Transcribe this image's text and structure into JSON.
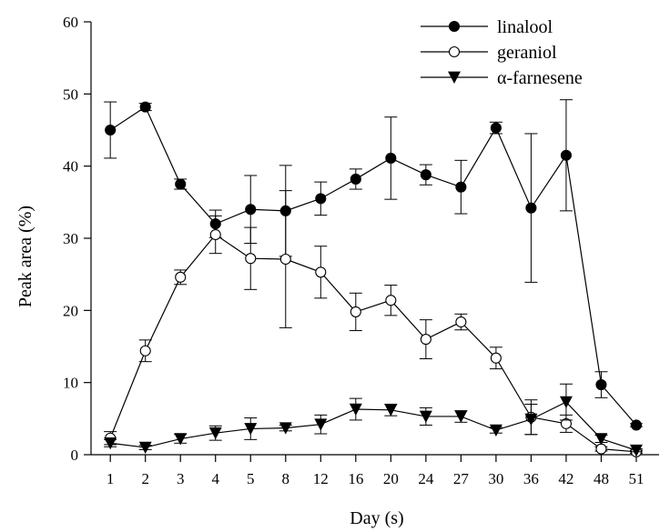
{
  "chart_data": {
    "type": "line",
    "title": "",
    "xlabel": "Day (s)",
    "ylabel": "Peak area (%)",
    "categories": [
      "1",
      "2",
      "3",
      "4",
      "5",
      "8",
      "12",
      "16",
      "20",
      "24",
      "27",
      "30",
      "36",
      "42",
      "48",
      "51"
    ],
    "ylim": [
      0,
      60
    ],
    "yticks": [
      0,
      10,
      20,
      30,
      40,
      50,
      60
    ],
    "grid": false,
    "legend_position": "top-right",
    "series": [
      {
        "name": "linalool",
        "marker": "filled-circle",
        "color": "#000000",
        "values": [
          45.0,
          48.2,
          37.5,
          32.0,
          34.0,
          33.8,
          35.5,
          38.2,
          41.1,
          38.8,
          37.1,
          45.3,
          34.2,
          41.5,
          9.7,
          4.1
        ],
        "errors": [
          3.9,
          0.5,
          0.7,
          1.9,
          4.7,
          6.3,
          2.3,
          1.4,
          5.7,
          1.4,
          3.7,
          0.8,
          10.3,
          7.7,
          1.8,
          0.2
        ]
      },
      {
        "name": "geraniol",
        "marker": "open-circle",
        "color": "#000000",
        "values": [
          2.3,
          14.4,
          24.6,
          30.5,
          27.2,
          27.1,
          25.3,
          19.8,
          21.4,
          16.0,
          18.4,
          13.4,
          5.2,
          4.3,
          0.8,
          0.4
        ],
        "errors": [
          0.9,
          1.5,
          1.0,
          2.6,
          4.3,
          9.5,
          3.6,
          2.6,
          2.1,
          2.7,
          1.1,
          1.5,
          2.4,
          1.2,
          0.3,
          0.2
        ]
      },
      {
        "name": "α-farnesene",
        "marker": "filled-triangle-down",
        "color": "#000000",
        "values": [
          1.6,
          1.0,
          2.2,
          3.0,
          3.6,
          3.7,
          4.2,
          6.3,
          6.2,
          5.3,
          5.3,
          3.4,
          4.9,
          7.3,
          2.2,
          0.6
        ],
        "errors": [
          0.5,
          0.3,
          0.6,
          1.0,
          1.5,
          0.4,
          1.3,
          1.5,
          0.8,
          1.2,
          0.8,
          0.4,
          2.1,
          2.5,
          0.5,
          0.2
        ]
      }
    ]
  }
}
